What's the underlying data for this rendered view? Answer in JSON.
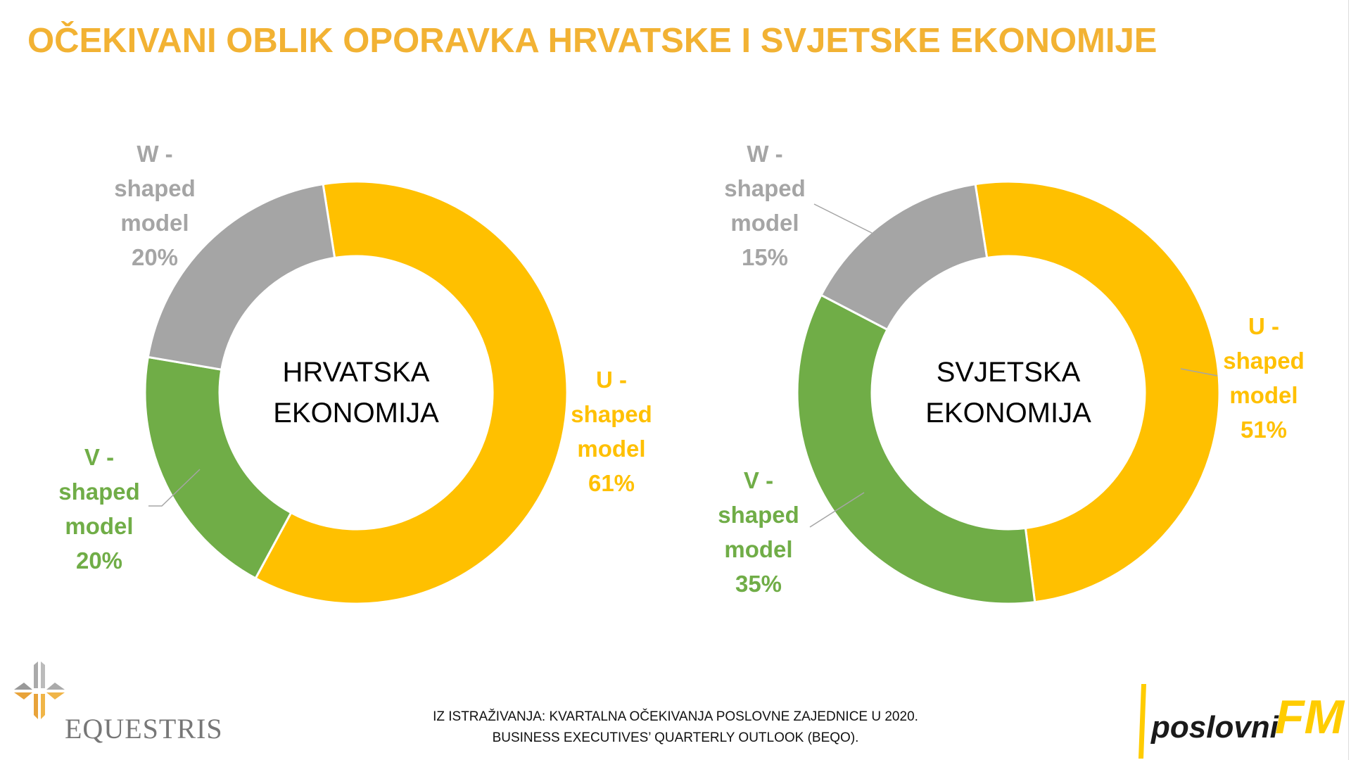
{
  "title": "OČEKIVANI OBLIK OPORAVKA HRVATSKE I SVJETSKE EKONOMIJE",
  "colors": {
    "U": "#FFC000",
    "V": "#70AD47",
    "W": "#A5A5A5",
    "title": "#F2B233"
  },
  "chart_data": [
    {
      "type": "pie",
      "subtype": "doughnut",
      "title": "HRVATSKA EKONOMIJA",
      "title_lines": [
        "HRVATSKA",
        "EKONOMIJA"
      ],
      "categories": [
        "U - shaped model",
        "V - shaped model",
        "W - shaped model"
      ],
      "values": [
        61,
        20,
        20
      ],
      "unit": "%",
      "labels": [
        {
          "lines": [
            "U -",
            "shaped",
            "model",
            "61%"
          ]
        },
        {
          "lines": [
            "V -",
            "shaped",
            "model",
            "20%"
          ]
        },
        {
          "lines": [
            "W -",
            "shaped",
            "model",
            "20%"
          ]
        }
      ]
    },
    {
      "type": "pie",
      "subtype": "doughnut",
      "title": "SVJETSKA EKONOMIJA",
      "title_lines": [
        "SVJETSKA",
        "EKONOMIJA"
      ],
      "categories": [
        "U - shaped model",
        "V - shaped model",
        "W - shaped model"
      ],
      "values": [
        51,
        35,
        15
      ],
      "unit": "%",
      "labels": [
        {
          "lines": [
            "U -",
            "shaped",
            "model",
            "51%"
          ]
        },
        {
          "lines": [
            "V -",
            "shaped",
            "model",
            "35%"
          ]
        },
        {
          "lines": [
            "W -",
            "shaped",
            "model",
            "15%"
          ]
        }
      ]
    }
  ],
  "footer": {
    "line1": "IZ ISTRAŽIVANJA: KVARTALNA OČEKIVANJA POSLOVNE ZAJEDNICE U 2020.",
    "line2": "BUSINESS EXECUTIVES’ QUARTERLY OUTLOOK (BEQO)."
  },
  "logos": {
    "left": "EQUESTRIS",
    "right_main": "poslovni",
    "right_accent": "FM"
  }
}
